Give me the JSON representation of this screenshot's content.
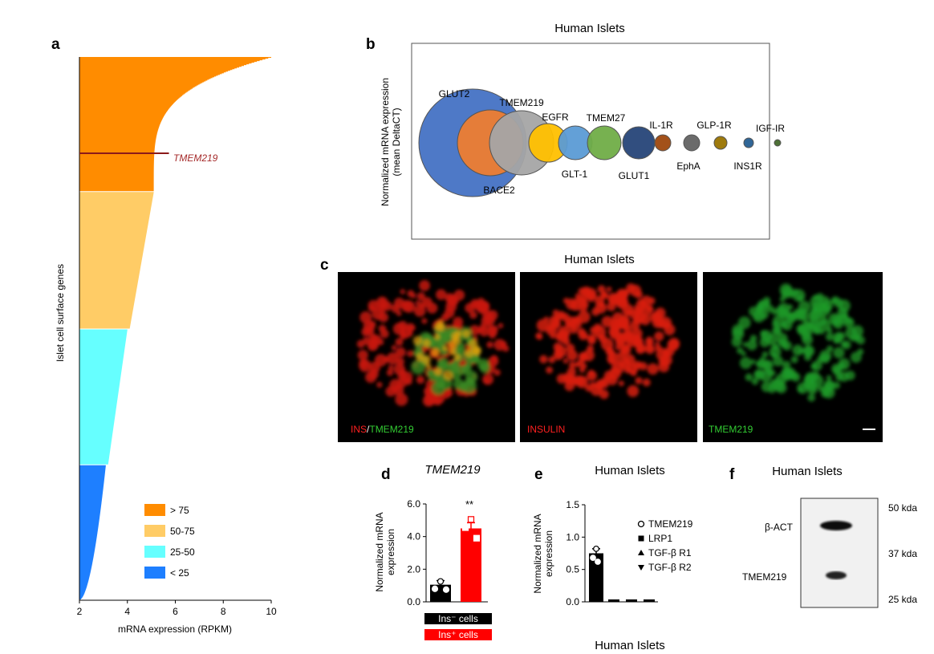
{
  "panel_letters": {
    "a": "a",
    "b": "b",
    "c": "c",
    "d": "d",
    "e": "e",
    "f": "f"
  },
  "chart_data": [
    {
      "panel": "a",
      "type": "bar",
      "orientation": "horizontal",
      "xlabel": "mRNA expression (RPKM)",
      "ylabel": "Islet cell surface genes",
      "xlim": [
        2,
        10
      ],
      "xticks": [
        "2",
        "4",
        "6",
        "8",
        "10"
      ],
      "highlight": {
        "label": "TMEM219",
        "value": 5.6,
        "color": "#8b1a1a"
      },
      "groups": [
        {
          "name": "> 75",
          "color": "#ff8c00",
          "rows": 165,
          "max": 10.0,
          "min": 5.1
        },
        {
          "name": "50-75",
          "color": "#ffcc66",
          "rows": 168,
          "max": 5.1,
          "min": 4.1
        },
        {
          "name": "25-50",
          "color": "#66ffff",
          "rows": 166,
          "max": 4.0,
          "min": 3.2
        },
        {
          "name": "< 25",
          "color": "#1e7fff",
          "rows": 166,
          "max": 3.1,
          "min": 2.0
        }
      ]
    },
    {
      "panel": "b",
      "type": "scatter",
      "subtype": "bubble",
      "title": "Human Islets",
      "ylabel": "Normalized mRNA expression",
      "ylabel2": "(mean DeltaCT)",
      "bubbles": [
        {
          "label": "GLUT2",
          "size": 67,
          "color": "#4472c4",
          "label_pos": "top"
        },
        {
          "label": "BACE2",
          "size": 41,
          "color": "#ed7d31",
          "label_pos": "bottom"
        },
        {
          "label": "TMEM219",
          "size": 40,
          "color": "#a5a5a5",
          "label_pos": "top"
        },
        {
          "label": "EGFR",
          "size": 24,
          "color": "#ffc000",
          "label_pos": "top"
        },
        {
          "label": "GLT-1",
          "size": 21,
          "color": "#5b9bd5",
          "label_pos": "bottom"
        },
        {
          "label": "TMEM27",
          "size": 21,
          "color": "#70ad47",
          "label_pos": "top"
        },
        {
          "label": "GLUT1",
          "size": 20,
          "color": "#264478",
          "label_pos": "bottom"
        },
        {
          "label": "IL-1R",
          "size": 10,
          "color": "#9e480e",
          "label_pos": "top"
        },
        {
          "label": "EphA",
          "size": 10,
          "color": "#636363",
          "label_pos": "bottom"
        },
        {
          "label": "GLP-1R",
          "size": 8,
          "color": "#997300",
          "label_pos": "top"
        },
        {
          "label": "INS1R",
          "size": 6,
          "color": "#255e91",
          "label_pos": "bottom"
        },
        {
          "label": "IGF-IR",
          "size": 4,
          "color": "#43682b",
          "label_pos": "top"
        }
      ]
    },
    {
      "panel": "d",
      "type": "bar",
      "title": "TMEM219",
      "ylabel": "Normalized mRNA expression",
      "ylim": [
        0,
        6
      ],
      "yticks": [
        "0.0",
        "2.0",
        "4.0",
        "6.0"
      ],
      "significance": "**",
      "series": [
        {
          "name": "Ins⁻ cells",
          "value": 1.05,
          "error": 0.25,
          "color": "#000000",
          "points": [
            1.25,
            0.8,
            0.75
          ]
        },
        {
          "name": "Ins⁺ cells",
          "value": 4.5,
          "error": 0.35,
          "color": "#ff0000",
          "points": [
            5.05,
            4.55,
            3.9
          ]
        }
      ]
    },
    {
      "panel": "e",
      "type": "bar",
      "title": "Human Islets",
      "footer": "Human Islets",
      "ylabel": "Normalized mRNA expression",
      "ylim": [
        0,
        1.5
      ],
      "yticks": [
        "0.0",
        "0.5",
        "1.0",
        "1.5"
      ],
      "series": [
        {
          "name": "TMEM219",
          "value": 0.75,
          "error": 0.07,
          "marker": "circle",
          "points": [
            0.82,
            0.68,
            0.62
          ]
        },
        {
          "name": "LRP1",
          "value": 0.0,
          "marker": "square"
        },
        {
          "name": "TGF-β R1",
          "value": 0.0,
          "marker": "triangle-up"
        },
        {
          "name": "TGF-β R2",
          "value": 0.0,
          "marker": "triangle-down"
        }
      ]
    }
  ],
  "panel_c": {
    "title": "Human Islets",
    "images": [
      {
        "label_part1": "INS",
        "label_sep": "/",
        "label_part2": "TMEM219",
        "color1": "#ff2020",
        "color2": "#33cc33"
      },
      {
        "label_part1": "INSULIN",
        "color1": "#ff2020"
      },
      {
        "label_part1": "TMEM219",
        "color1": "#33cc33"
      }
    ]
  },
  "panel_f": {
    "title": "Human Islets",
    "band1": "β-ACT",
    "band2": "TMEM219",
    "marker1": "50 kda",
    "marker2": "37 kda",
    "marker3": "25 kda"
  }
}
